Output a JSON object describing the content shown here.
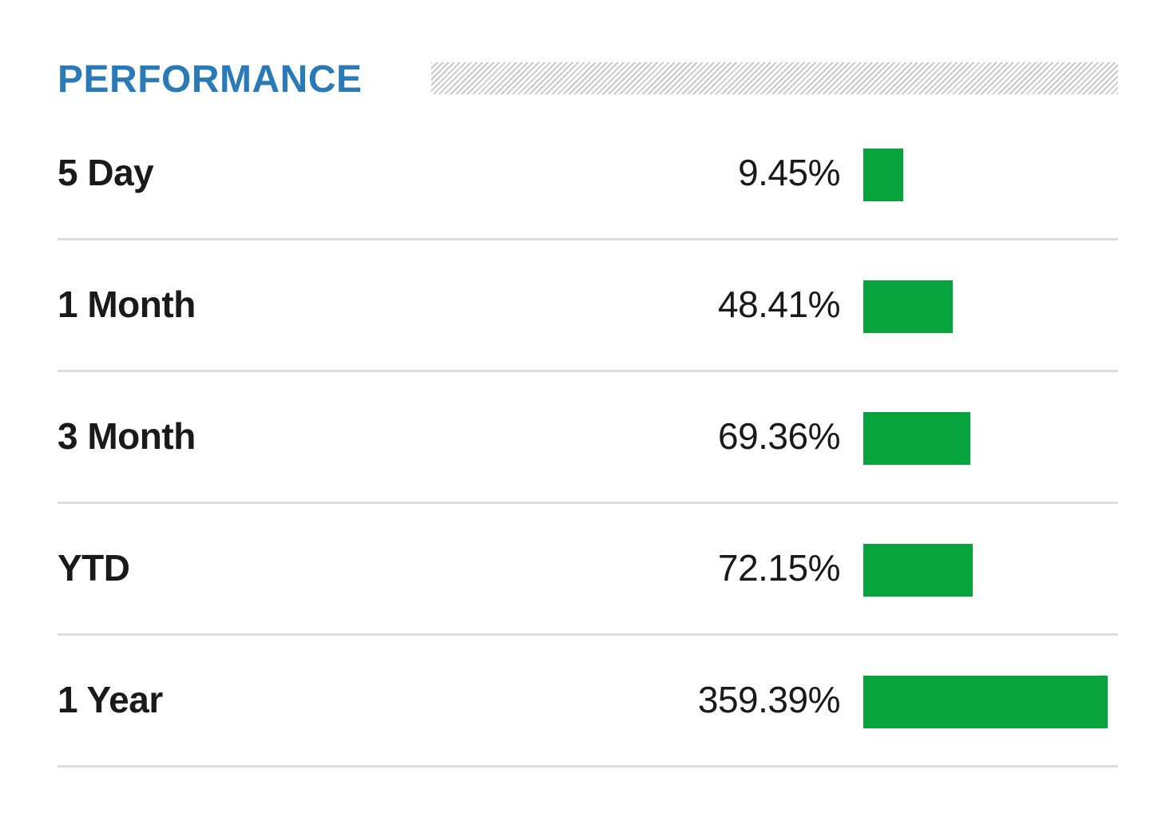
{
  "title": "PERFORMANCE",
  "colors": {
    "title": "#2a7ab8",
    "bar": "#07a33c",
    "divider": "#dedede",
    "text": "#1a1a1a"
  },
  "rows": [
    {
      "label": "5 Day",
      "value_text": "9.45%",
      "value": 9.45
    },
    {
      "label": "1 Month",
      "value_text": "48.41%",
      "value": 48.41
    },
    {
      "label": "3 Month",
      "value_text": "69.36%",
      "value": 69.36
    },
    {
      "label": "YTD",
      "value_text": "72.15%",
      "value": 72.15
    },
    {
      "label": "1 Year",
      "value_text": "359.39%",
      "value": 359.39
    }
  ]
}
